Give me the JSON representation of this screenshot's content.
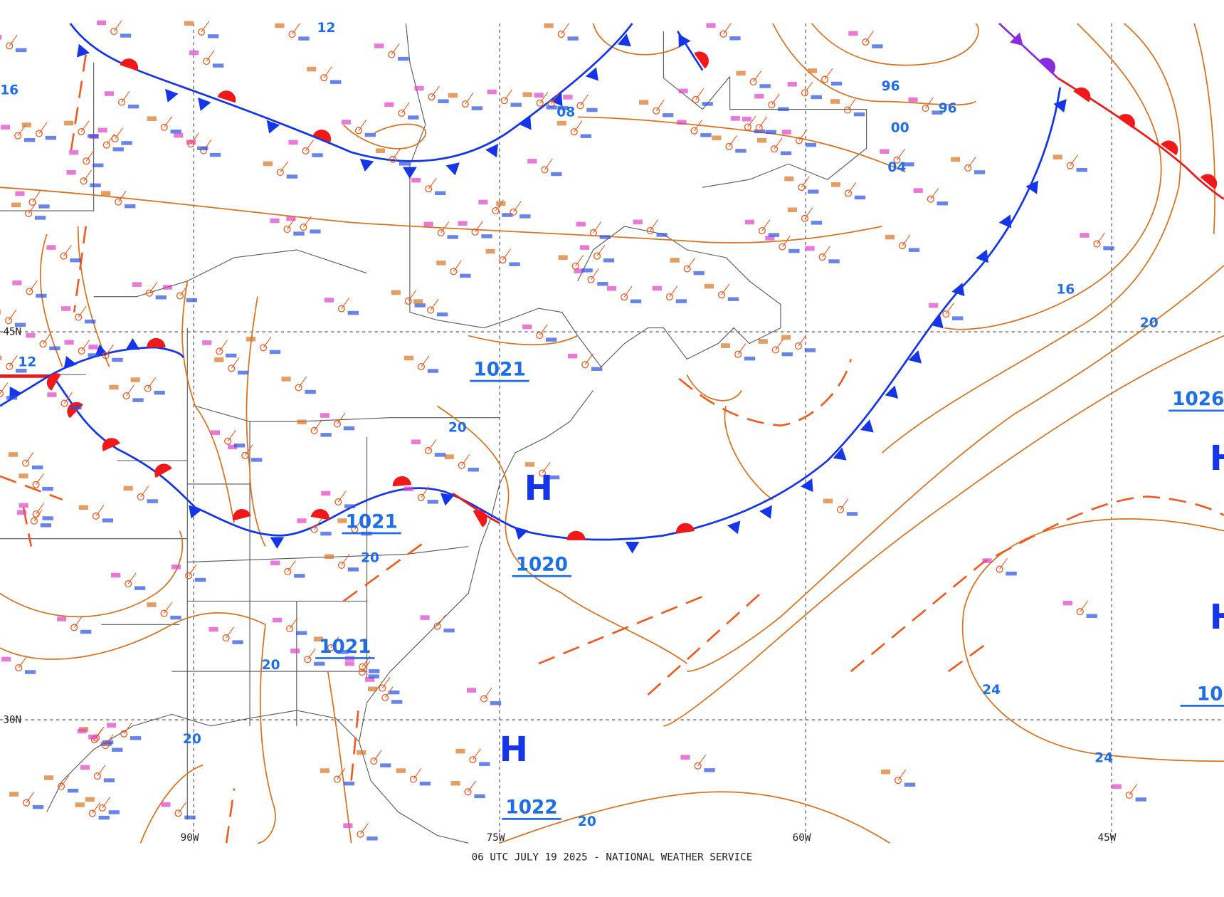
{
  "map": {
    "caption": "06 UTC JULY 19 2025 - NATIONAL WEATHER SERVICE",
    "grid_labels": [
      "45N",
      "30N",
      "90W",
      "75W",
      "60W",
      "45W"
    ],
    "high_centers": [
      "H",
      "H",
      "H",
      "H"
    ],
    "pressure_values": [
      "1021",
      "1021",
      "1020",
      "1021",
      "1022",
      "1026",
      "10"
    ],
    "isobar_labels": [
      "12",
      "08",
      "96",
      "96",
      "00",
      "04",
      "16",
      "20",
      "20",
      "20",
      "20",
      "20",
      "20",
      "24",
      "24",
      "16",
      "12"
    ]
  }
}
